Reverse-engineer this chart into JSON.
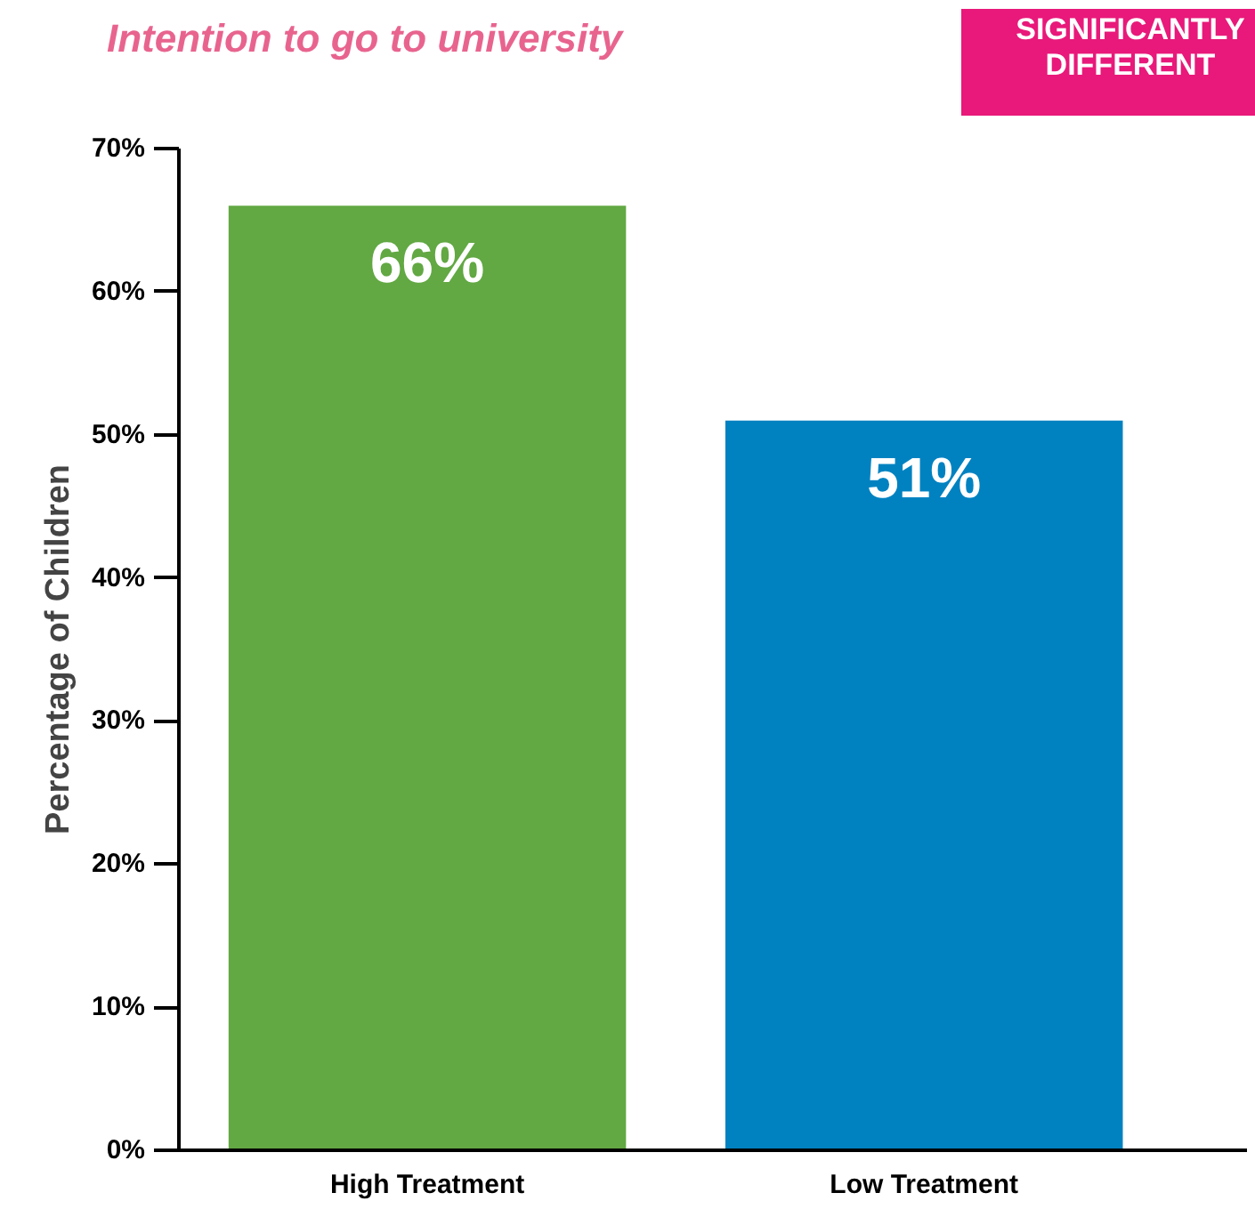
{
  "chart_data": {
    "type": "bar",
    "title": "Intention to go to university",
    "ylabel": "Percentage of Children",
    "categories": [
      "High Treatment",
      "Low Treatment"
    ],
    "values": [
      66,
      51
    ],
    "colors": [
      "#62a843",
      "#0082c1"
    ],
    "ylim": [
      0,
      70
    ],
    "yticks": [
      {
        "value": 0,
        "label": "0%"
      },
      {
        "value": 10,
        "label": "10%"
      },
      {
        "value": 20,
        "label": "20%"
      },
      {
        "value": 30,
        "label": "30%"
      },
      {
        "value": 40,
        "label": "40%"
      },
      {
        "value": 50,
        "label": "50%"
      },
      {
        "value": 60,
        "label": "60%"
      },
      {
        "value": 70,
        "label": "70%"
      }
    ],
    "data_labels": true,
    "value_labels": [
      "66%",
      "51%"
    ],
    "grid": false,
    "annotations": [
      "SIGNIFICANTLY DIFFERENT"
    ]
  }
}
